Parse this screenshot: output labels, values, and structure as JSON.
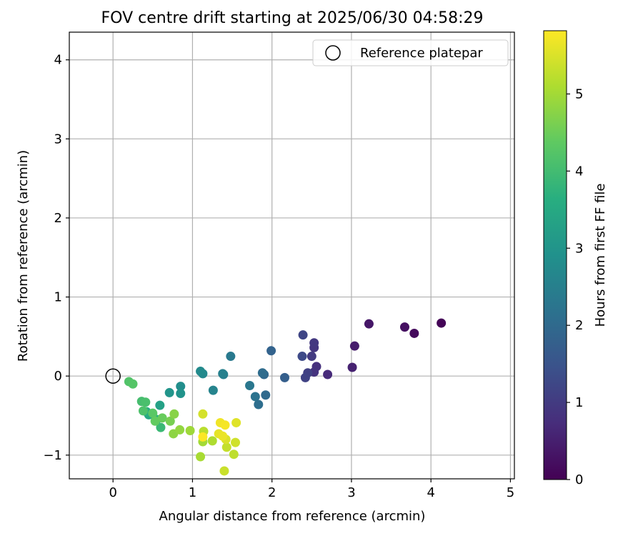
{
  "chart_data": {
    "type": "scatter",
    "title": "FOV centre drift starting at 2025/06/30 04:58:29",
    "xlabel": "Angular distance from reference (arcmin)",
    "ylabel": "Rotation from reference (arcmin)",
    "xlim": [
      -0.55,
      5.05
    ],
    "ylim": [
      -1.3,
      4.35
    ],
    "xticks": [
      0,
      1,
      2,
      3,
      4,
      5
    ],
    "yticks": [
      -1,
      0,
      1,
      2,
      3,
      4
    ],
    "xtick_labels": [
      "0",
      "1",
      "2",
      "3",
      "4",
      "5"
    ],
    "ytick_labels": [
      "−1",
      "0",
      "1",
      "2",
      "3",
      "4"
    ],
    "grid": true,
    "legend": {
      "position": "top-right",
      "entries": [
        "Reference platepar"
      ]
    },
    "reference_point": {
      "x": 0,
      "y": 0
    },
    "colorbar": {
      "label": "Hours from first FF file",
      "colormap": "viridis",
      "range": [
        0,
        5.82
      ],
      "ticks": [
        0,
        1,
        2,
        3,
        4,
        5
      ],
      "tick_labels": [
        "0",
        "1",
        "2",
        "3",
        "4",
        "5"
      ]
    },
    "points": [
      {
        "x": 4.13,
        "y": 0.67,
        "hours": 0.05
      },
      {
        "x": 3.79,
        "y": 0.54,
        "hours": 0.15
      },
      {
        "x": 3.67,
        "y": 0.62,
        "hours": 0.25
      },
      {
        "x": 3.22,
        "y": 0.66,
        "hours": 0.35
      },
      {
        "x": 3.04,
        "y": 0.38,
        "hours": 0.45
      },
      {
        "x": 3.01,
        "y": 0.11,
        "hours": 0.55
      },
      {
        "x": 2.7,
        "y": 0.02,
        "hours": 0.7
      },
      {
        "x": 2.56,
        "y": 0.12,
        "hours": 0.8
      },
      {
        "x": 2.53,
        "y": 0.05,
        "hours": 0.85
      },
      {
        "x": 2.53,
        "y": 0.36,
        "hours": 0.9
      },
      {
        "x": 2.53,
        "y": 0.42,
        "hours": 0.95
      },
      {
        "x": 2.5,
        "y": 0.25,
        "hours": 1.0
      },
      {
        "x": 2.45,
        "y": 0.04,
        "hours": 1.1
      },
      {
        "x": 2.42,
        "y": -0.02,
        "hours": 1.15
      },
      {
        "x": 2.39,
        "y": 0.52,
        "hours": 1.2
      },
      {
        "x": 2.38,
        "y": 0.25,
        "hours": 1.3
      },
      {
        "x": 2.16,
        "y": -0.02,
        "hours": 1.75
      },
      {
        "x": 1.99,
        "y": 0.32,
        "hours": 1.85
      },
      {
        "x": 1.92,
        "y": -0.24,
        "hours": 2.0
      },
      {
        "x": 1.9,
        "y": 0.02,
        "hours": 1.95
      },
      {
        "x": 1.88,
        "y": 0.04,
        "hours": 2.05
      },
      {
        "x": 1.83,
        "y": -0.36,
        "hours": 2.1
      },
      {
        "x": 1.79,
        "y": -0.26,
        "hours": 2.2
      },
      {
        "x": 1.72,
        "y": -0.12,
        "hours": 2.3
      },
      {
        "x": 1.48,
        "y": 0.25,
        "hours": 2.35
      },
      {
        "x": 1.39,
        "y": 0.02,
        "hours": 2.45
      },
      {
        "x": 1.38,
        "y": 0.03,
        "hours": 2.5
      },
      {
        "x": 1.26,
        "y": -0.18,
        "hours": 2.6
      },
      {
        "x": 1.13,
        "y": 0.03,
        "hours": 2.7
      },
      {
        "x": 1.1,
        "y": 0.06,
        "hours": 2.75
      },
      {
        "x": 0.85,
        "y": -0.13,
        "hours": 2.85
      },
      {
        "x": 0.85,
        "y": -0.22,
        "hours": 2.95
      },
      {
        "x": 0.71,
        "y": -0.21,
        "hours": 3.0
      },
      {
        "x": 0.59,
        "y": -0.37,
        "hours": 3.3
      },
      {
        "x": 0.45,
        "y": -0.49,
        "hours": 3.5
      },
      {
        "x": 0.42,
        "y": -0.45,
        "hours": 3.6
      },
      {
        "x": 0.55,
        "y": -0.55,
        "hours": 3.65
      },
      {
        "x": 0.6,
        "y": -0.65,
        "hours": 3.9
      },
      {
        "x": 0.36,
        "y": -0.32,
        "hours": 4.05
      },
      {
        "x": 0.41,
        "y": -0.33,
        "hours": 4.1
      },
      {
        "x": 0.38,
        "y": -0.44,
        "hours": 4.15
      },
      {
        "x": 0.2,
        "y": -0.07,
        "hours": 4.2
      },
      {
        "x": 0.25,
        "y": -0.1,
        "hours": 4.25
      },
      {
        "x": 0.5,
        "y": -0.47,
        "hours": 4.3
      },
      {
        "x": 0.53,
        "y": -0.57,
        "hours": 4.4
      },
      {
        "x": 0.62,
        "y": -0.53,
        "hours": 4.45
      },
      {
        "x": 0.72,
        "y": -0.57,
        "hours": 4.6
      },
      {
        "x": 0.77,
        "y": -0.48,
        "hours": 4.75
      },
      {
        "x": 0.76,
        "y": -0.73,
        "hours": 4.8
      },
      {
        "x": 0.84,
        "y": -0.68,
        "hours": 4.85
      },
      {
        "x": 0.97,
        "y": -0.69,
        "hours": 4.95
      },
      {
        "x": 1.13,
        "y": -0.83,
        "hours": 5.0
      },
      {
        "x": 1.1,
        "y": -1.02,
        "hours": 5.05
      },
      {
        "x": 1.25,
        "y": -0.82,
        "hours": 5.1
      },
      {
        "x": 1.14,
        "y": -0.7,
        "hours": 5.2
      },
      {
        "x": 1.52,
        "y": -0.99,
        "hours": 5.25
      },
      {
        "x": 1.43,
        "y": -0.9,
        "hours": 5.3
      },
      {
        "x": 1.4,
        "y": -1.2,
        "hours": 5.35
      },
      {
        "x": 1.54,
        "y": -0.84,
        "hours": 5.4
      },
      {
        "x": 1.13,
        "y": -0.48,
        "hours": 5.45
      },
      {
        "x": 1.42,
        "y": -0.8,
        "hours": 5.5
      },
      {
        "x": 1.55,
        "y": -0.59,
        "hours": 5.55
      },
      {
        "x": 1.33,
        "y": -0.73,
        "hours": 5.6
      },
      {
        "x": 1.38,
        "y": -0.76,
        "hours": 5.65
      },
      {
        "x": 1.35,
        "y": -0.59,
        "hours": 5.7
      },
      {
        "x": 1.41,
        "y": -0.62,
        "hours": 5.75
      },
      {
        "x": 1.13,
        "y": -0.77,
        "hours": 5.8
      }
    ]
  }
}
